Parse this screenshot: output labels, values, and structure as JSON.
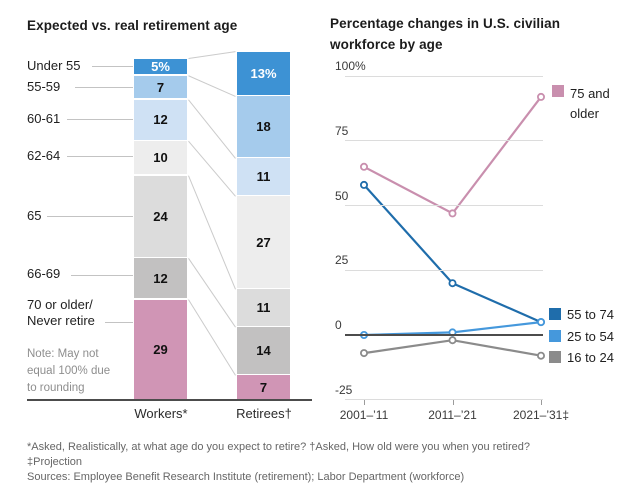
{
  "chart_data": [
    {
      "type": "bar",
      "variant": "stacked-percent-comparison",
      "title": "Expected vs. real retirement age",
      "categories": [
        [
          "Under 55"
        ],
        [
          "55-59"
        ],
        [
          "60-61"
        ],
        [
          "62-64"
        ],
        [
          "65"
        ],
        [
          "66-69"
        ],
        [
          "70 or older/",
          "Never retire"
        ]
      ],
      "series": [
        {
          "name": "Workers*",
          "values": [
            5,
            7,
            12,
            10,
            24,
            12,
            29
          ]
        },
        {
          "name": "Retirees†",
          "values": [
            13,
            18,
            11,
            27,
            11,
            14,
            7
          ]
        }
      ],
      "first_segment_suffix": "%",
      "segment_colors": [
        "#3d92d4",
        "#a5cbec",
        "#cfe1f4",
        "#ededed",
        "#dcdcdc",
        "#c2c1c1",
        "#d095b5"
      ],
      "segment_text_colors": [
        "#ffffff",
        "#111111",
        "#111111",
        "#111111",
        "#111111",
        "#111111",
        "#111111"
      ],
      "note_lines": [
        "Note: May not",
        "equal 100% due",
        "to rounding"
      ]
    },
    {
      "type": "line",
      "title": "Percentage changes in U.S. civilian workforce by age",
      "title_lines": [
        "Percentage changes in U.S. civilian",
        "workforce by age"
      ],
      "x": [
        "2001–’11",
        "2011–’21",
        "2021–’31‡"
      ],
      "series": [
        {
          "name": "75 and older",
          "color": "#c98fae",
          "values": [
            65,
            47,
            92
          ]
        },
        {
          "name": "55 to 74",
          "color": "#1f6dab",
          "values": [
            58,
            20,
            5
          ]
        },
        {
          "name": "25 to 54",
          "color": "#4598dc",
          "values": [
            0,
            1,
            5
          ]
        },
        {
          "name": "16 to 24",
          "color": "#8b8b8b",
          "values": [
            -7,
            -2,
            -8
          ]
        }
      ],
      "ylim": [
        -25,
        100
      ],
      "yticks": [
        {
          "v": 100,
          "label": "100%"
        },
        {
          "v": 75,
          "label": "75"
        },
        {
          "v": 50,
          "label": "50"
        },
        {
          "v": 25,
          "label": "25"
        },
        {
          "v": 0,
          "label": "0"
        },
        {
          "v": -25,
          "label": "-25"
        }
      ],
      "grid": true,
      "legend_position": "right",
      "marker": "open-circle"
    }
  ],
  "footnotes": [
    "*Asked, Realistically, at what age do you expect to retire?  †Asked, How old were you when you retired?",
    "‡Projection",
    "Sources: Employee Benefit Research Institute (retirement); Labor Department (workforce)"
  ]
}
